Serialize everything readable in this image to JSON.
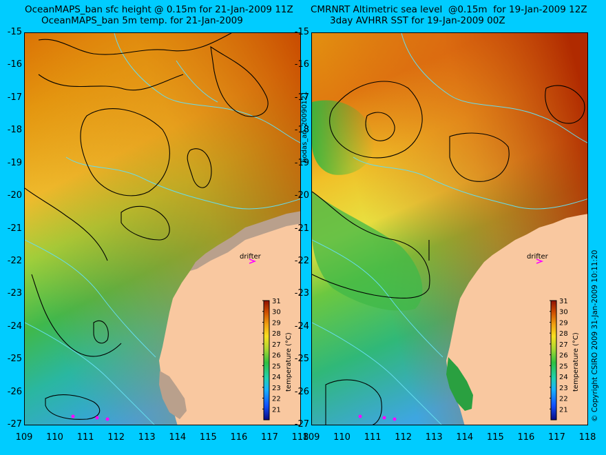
{
  "left_title": {
    "line1": "OceanMAPS_ban sfc height @ 0.15m for 21-Jan-2009 11Z",
    "line2": "OceanMAPS_ban 5m temp. for 21-Jan-2009"
  },
  "right_title": {
    "line1": "CMRNRT Altimetric sea level  @0.15m  for 19-Jan-2009 12Z",
    "line2": "3day AVHRR SST for 19-Jan-2009 00Z"
  },
  "y_ticks": [
    "-15",
    "-16",
    "-17",
    "-18",
    "-19",
    "-20",
    "-21",
    "-22",
    "-23",
    "-24",
    "-25",
    "-26",
    "-27"
  ],
  "x_ticks": [
    "109",
    "110",
    "111",
    "112",
    "113",
    "114",
    "115",
    "116",
    "117",
    "118"
  ],
  "drifter_label": "drifter",
  "colorbar": {
    "label": "temperature (°C)",
    "ticks": [
      "31",
      "30",
      "29",
      "28",
      "27",
      "26",
      "25",
      "24",
      "23",
      "22",
      "21"
    ],
    "range": [
      20,
      31
    ]
  },
  "side_text_left": "bodas_an_20090121",
  "side_text_right": "© Copyright CSIRO 2009   31-Jan-2009 10:11:20",
  "colors": {
    "background": "#00ccff",
    "land": "#f9c8a0",
    "land_grey": "#b9a08c",
    "contour": "#000000",
    "bathymetry": "#66ddee",
    "drifter": "#ff00ff"
  }
}
